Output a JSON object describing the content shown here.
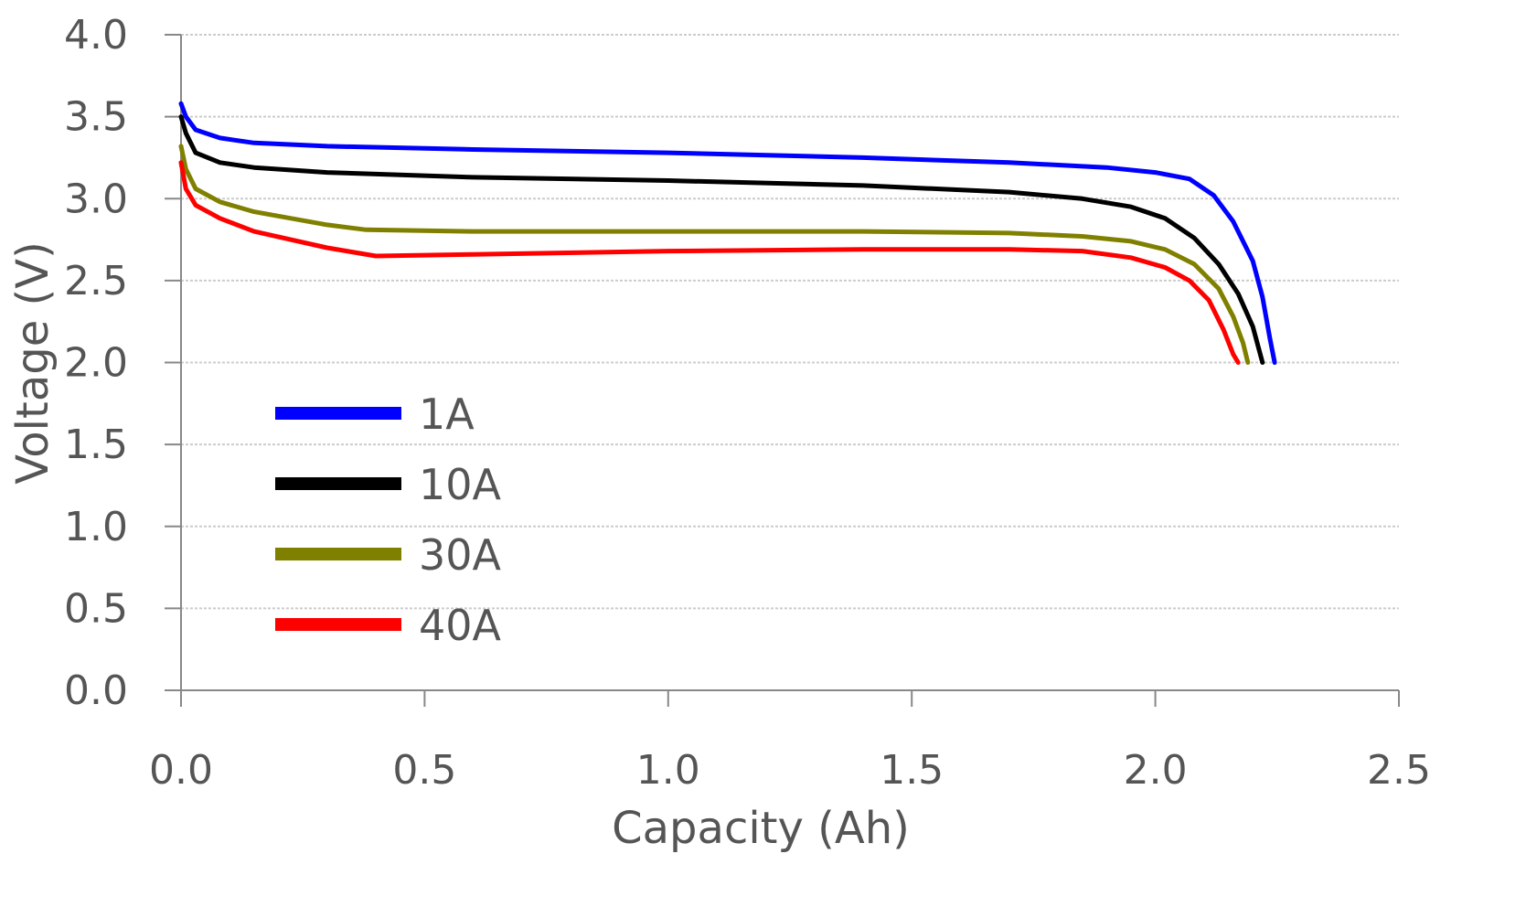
{
  "chart_data": {
    "type": "line",
    "title": "",
    "xlabel": "Capacity (Ah)",
    "ylabel": "Voltage (V)",
    "xlim": [
      0.0,
      2.5
    ],
    "ylim": [
      0.0,
      4.0
    ],
    "x_ticks": [
      "0.0",
      "0.5",
      "1.0",
      "1.5",
      "2.0",
      "2.5"
    ],
    "y_ticks": [
      "0.0",
      "0.5",
      "1.0",
      "1.5",
      "2.0",
      "2.5",
      "3.0",
      "3.5",
      "4.0"
    ],
    "grid": "horizontal",
    "legend_position": "lower-left",
    "series": [
      {
        "name": "1A",
        "color": "#0000ff",
        "points": [
          [
            0.0,
            3.58
          ],
          [
            0.01,
            3.5
          ],
          [
            0.03,
            3.42
          ],
          [
            0.08,
            3.37
          ],
          [
            0.15,
            3.34
          ],
          [
            0.3,
            3.32
          ],
          [
            0.6,
            3.3
          ],
          [
            1.0,
            3.28
          ],
          [
            1.4,
            3.25
          ],
          [
            1.7,
            3.22
          ],
          [
            1.9,
            3.19
          ],
          [
            2.0,
            3.16
          ],
          [
            2.07,
            3.12
          ],
          [
            2.12,
            3.02
          ],
          [
            2.16,
            2.86
          ],
          [
            2.2,
            2.62
          ],
          [
            2.22,
            2.4
          ],
          [
            2.235,
            2.15
          ],
          [
            2.245,
            2.0
          ]
        ]
      },
      {
        "name": "10A",
        "color": "#000000",
        "points": [
          [
            0.0,
            3.5
          ],
          [
            0.01,
            3.4
          ],
          [
            0.03,
            3.28
          ],
          [
            0.08,
            3.22
          ],
          [
            0.15,
            3.19
          ],
          [
            0.3,
            3.16
          ],
          [
            0.6,
            3.13
          ],
          [
            1.0,
            3.11
          ],
          [
            1.4,
            3.08
          ],
          [
            1.7,
            3.04
          ],
          [
            1.85,
            3.0
          ],
          [
            1.95,
            2.95
          ],
          [
            2.02,
            2.88
          ],
          [
            2.08,
            2.76
          ],
          [
            2.13,
            2.6
          ],
          [
            2.17,
            2.42
          ],
          [
            2.2,
            2.22
          ],
          [
            2.22,
            2.0
          ]
        ]
      },
      {
        "name": "30A",
        "color": "#808000",
        "points": [
          [
            0.0,
            3.32
          ],
          [
            0.01,
            3.18
          ],
          [
            0.03,
            3.06
          ],
          [
            0.08,
            2.98
          ],
          [
            0.15,
            2.92
          ],
          [
            0.3,
            2.84
          ],
          [
            0.38,
            2.81
          ],
          [
            0.6,
            2.8
          ],
          [
            1.0,
            2.8
          ],
          [
            1.4,
            2.8
          ],
          [
            1.7,
            2.79
          ],
          [
            1.85,
            2.77
          ],
          [
            1.95,
            2.74
          ],
          [
            2.02,
            2.69
          ],
          [
            2.08,
            2.6
          ],
          [
            2.13,
            2.45
          ],
          [
            2.16,
            2.28
          ],
          [
            2.18,
            2.12
          ],
          [
            2.19,
            2.0
          ]
        ]
      },
      {
        "name": "40A",
        "color": "#ff0000",
        "points": [
          [
            0.0,
            3.22
          ],
          [
            0.01,
            3.06
          ],
          [
            0.03,
            2.96
          ],
          [
            0.08,
            2.88
          ],
          [
            0.15,
            2.8
          ],
          [
            0.3,
            2.7
          ],
          [
            0.4,
            2.65
          ],
          [
            0.6,
            2.66
          ],
          [
            1.0,
            2.68
          ],
          [
            1.4,
            2.69
          ],
          [
            1.7,
            2.69
          ],
          [
            1.85,
            2.68
          ],
          [
            1.95,
            2.64
          ],
          [
            2.02,
            2.58
          ],
          [
            2.07,
            2.5
          ],
          [
            2.11,
            2.38
          ],
          [
            2.14,
            2.2
          ],
          [
            2.16,
            2.05
          ],
          [
            2.17,
            2.0
          ]
        ]
      }
    ]
  }
}
